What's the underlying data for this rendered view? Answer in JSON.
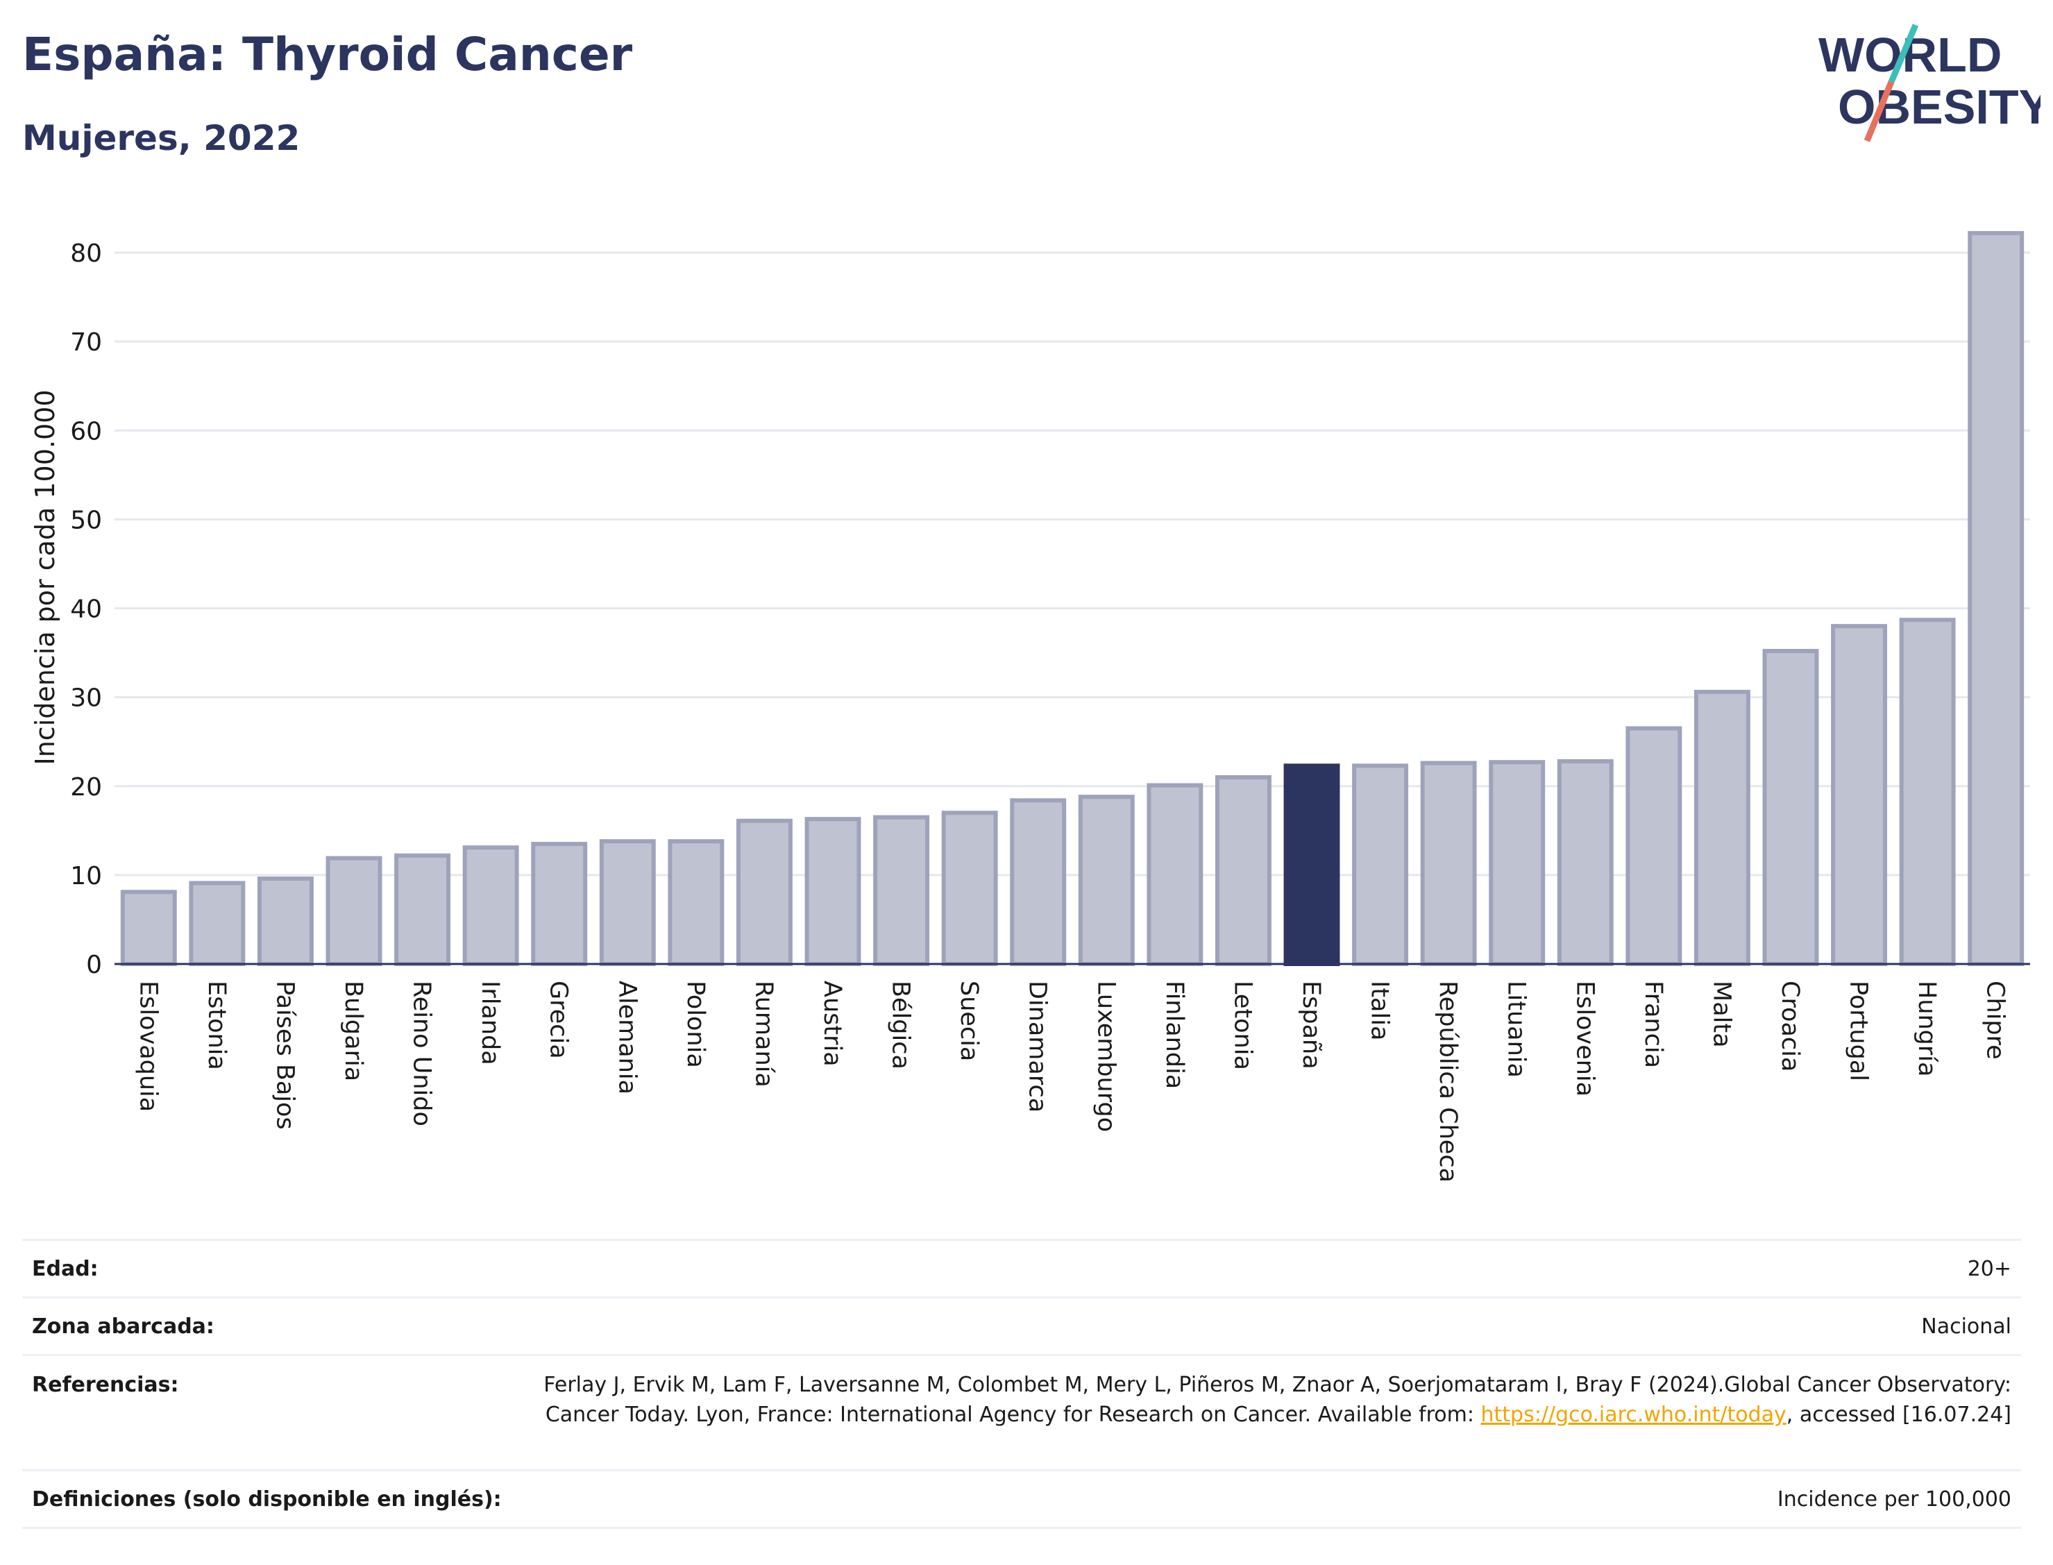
{
  "header": {
    "title": "España: Thyroid Cancer",
    "subtitle": "Mujeres, 2022"
  },
  "logo": {
    "line1": "WORLD",
    "line2": "OBESITY",
    "slash_color_top": "#3bbfb7",
    "slash_color_bottom": "#e8705f"
  },
  "colors": {
    "bar": "#bfc2d0",
    "bar_border": "#9ea3bb",
    "highlight": "#2b3560"
  },
  "chart_data": {
    "type": "bar",
    "ylabel": "Incidencia por cada 100.000",
    "xlabel": "",
    "ylim": [
      0,
      85
    ],
    "yticks": [
      0,
      10,
      20,
      30,
      40,
      50,
      60,
      70,
      80
    ],
    "grid": true,
    "highlight": "España",
    "categories": [
      "Eslovaquia",
      "Estonia",
      "Países Bajos",
      "Bulgaria",
      "Reino Unido",
      "Irlanda",
      "Grecia",
      "Alemania",
      "Polonia",
      "Rumanía",
      "Austria",
      "Bélgica",
      "Suecia",
      "Dinamarca",
      "Luxemburgo",
      "Finlandia",
      "Letonia",
      "España",
      "Italia",
      "República Checa",
      "Lituania",
      "Eslovenia",
      "Francia",
      "Malta",
      "Croacia",
      "Portugal",
      "Hungría",
      "Chipre"
    ],
    "values": [
      8.1,
      9.1,
      9.6,
      11.9,
      12.2,
      13.1,
      13.5,
      13.8,
      13.8,
      16.1,
      16.3,
      16.5,
      17.0,
      18.4,
      18.8,
      20.1,
      21.0,
      22.3,
      22.3,
      22.6,
      22.7,
      22.8,
      26.5,
      30.6,
      35.2,
      38.0,
      38.7,
      82.2
    ]
  },
  "meta": {
    "edad_label": "Edad:",
    "edad_value": "20+",
    "zona_label": "Zona abarcada:",
    "zona_value": "Nacional",
    "ref_label": "Referencias:",
    "ref_text": "Ferlay J, Ervik M, Lam F, Laversanne M, Colombet M, Mery L, Piñeros M, Znaor A, Soerjomataram I, Bray F (2024).Global Cancer Observatory: Cancer Today. Lyon, France: International Agency for Research on Cancer. Available from:",
    "ref_link": "https://gco.iarc.who.int/today",
    "ref_tail": ", accessed [16.07.24]",
    "def_label": "Definiciones (solo disponible en inglés):",
    "def_value": "Incidence per 100,000"
  }
}
